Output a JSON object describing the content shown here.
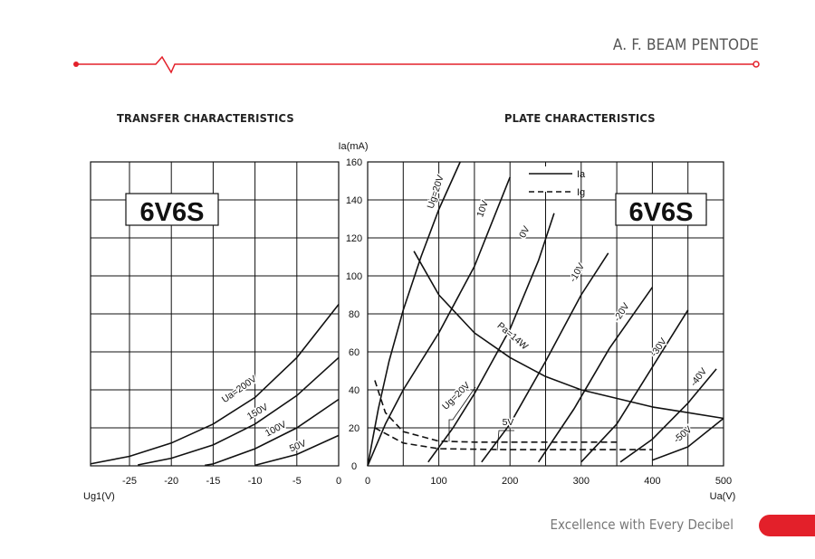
{
  "header": {
    "title": "A. F. BEAM PENTODE",
    "accent_color": "#e3202a"
  },
  "footer": {
    "slogan": "Excellence with Every Decibel",
    "accent_color": "#e3202a"
  },
  "chart_data": [
    {
      "type": "line",
      "title": "TRANSFER CHARACTERISTICS",
      "tube_label": "6V6S",
      "xlabel": "Ug1(V)",
      "ylabel": "Ia(mA)",
      "xlim": [
        -29.7,
        0
      ],
      "ylim": [
        0,
        160
      ],
      "xticks": [
        -25,
        -20,
        -15,
        -10,
        -5,
        0
      ],
      "yticks": [
        0,
        20,
        40,
        60,
        80,
        100,
        120,
        140,
        160
      ],
      "grid": true,
      "series": [
        {
          "name": "Ua=200V",
          "label": "Ua=200V",
          "x": [
            -29.7,
            -25,
            -20,
            -15,
            -10,
            -5,
            0
          ],
          "y": [
            1,
            5,
            12,
            22,
            36,
            57,
            85
          ]
        },
        {
          "name": "Ua=150V",
          "label": "150V",
          "x": [
            -24,
            -20,
            -15,
            -10,
            -5,
            0
          ],
          "y": [
            0.5,
            4,
            11,
            22,
            37,
            57
          ]
        },
        {
          "name": "Ua=100V",
          "label": "100V",
          "x": [
            -16,
            -15,
            -10,
            -5,
            0
          ],
          "y": [
            0.3,
            1,
            9,
            20,
            35
          ]
        },
        {
          "name": "Ua=50V",
          "label": "50V",
          "x": [
            -10,
            -5,
            0
          ],
          "y": [
            0.3,
            6,
            16
          ]
        }
      ]
    },
    {
      "type": "line",
      "title": "PLATE CHARACTERISTICS",
      "tube_label": "6V6S",
      "xlabel": "Ua(V)",
      "ylabel": "Ia(mA)",
      "xlim": [
        0,
        500
      ],
      "ylim": [
        0,
        160
      ],
      "xticks": [
        0,
        100,
        200,
        300,
        400,
        500
      ],
      "yticks": [
        0,
        20,
        40,
        60,
        80,
        100,
        120,
        140,
        160
      ],
      "grid": true,
      "legend": [
        {
          "label": "Ia",
          "style": "solid"
        },
        {
          "label": "Ig",
          "style": "dashed"
        }
      ],
      "series": [
        {
          "name": "Ia Ug=20V",
          "label": "Ug=20V",
          "style": "solid",
          "x": [
            0,
            15,
            30,
            50,
            75,
            100,
            130
          ],
          "y": [
            0,
            30,
            55,
            82,
            110,
            135,
            160
          ]
        },
        {
          "name": "Ia Ug=10V",
          "label": "10V",
          "style": "solid",
          "x": [
            0,
            25,
            50,
            100,
            150,
            200
          ],
          "y": [
            0,
            22,
            40,
            70,
            105,
            152
          ]
        },
        {
          "name": "Ia Ug=0V",
          "label": "0V",
          "style": "solid",
          "x": [
            85,
            120,
            150,
            200,
            240,
            262
          ],
          "y": [
            2,
            20,
            38,
            72,
            108,
            133
          ]
        },
        {
          "name": "Ia Ug=-10V",
          "label": "-10V",
          "style": "solid",
          "x": [
            160,
            200,
            250,
            300,
            338
          ],
          "y": [
            2,
            22,
            55,
            90,
            112
          ]
        },
        {
          "name": "Ia Ug=-20V",
          "label": "-20V",
          "style": "solid",
          "x": [
            240,
            290,
            340,
            400
          ],
          "y": [
            2,
            30,
            62,
            94
          ]
        },
        {
          "name": "Ia Ug=-30V",
          "label": "-30V",
          "style": "solid",
          "x": [
            300,
            350,
            400,
            450
          ],
          "y": [
            2,
            22,
            52,
            82
          ]
        },
        {
          "name": "Ia Ug=-40V",
          "label": "-40V",
          "style": "solid",
          "x": [
            355,
            400,
            450,
            490
          ],
          "y": [
            2,
            14,
            33,
            51
          ]
        },
        {
          "name": "Ia Ug=-50V",
          "label": "-50V",
          "style": "solid",
          "x": [
            400,
            450,
            500
          ],
          "y": [
            3,
            10,
            25
          ]
        },
        {
          "name": "Pa=14W",
          "label": "Pa=14W",
          "style": "solid",
          "x": [
            65,
            100,
            150,
            200,
            250,
            300,
            400,
            500
          ],
          "y": [
            113,
            90,
            70,
            57,
            47,
            40,
            31,
            25
          ]
        },
        {
          "name": "Ig Ug=20V",
          "label": "Ug=20V",
          "style": "dashed",
          "x": [
            10,
            25,
            50,
            100,
            150,
            355
          ],
          "y": [
            45,
            28,
            18,
            13,
            12.5,
            12.5
          ]
        },
        {
          "name": "Ig Ug=5V",
          "label": "5V",
          "style": "dashed",
          "x": [
            10,
            50,
            100,
            200,
            400
          ],
          "y": [
            20,
            12,
            9,
            8.5,
            8.5
          ]
        }
      ]
    }
  ]
}
